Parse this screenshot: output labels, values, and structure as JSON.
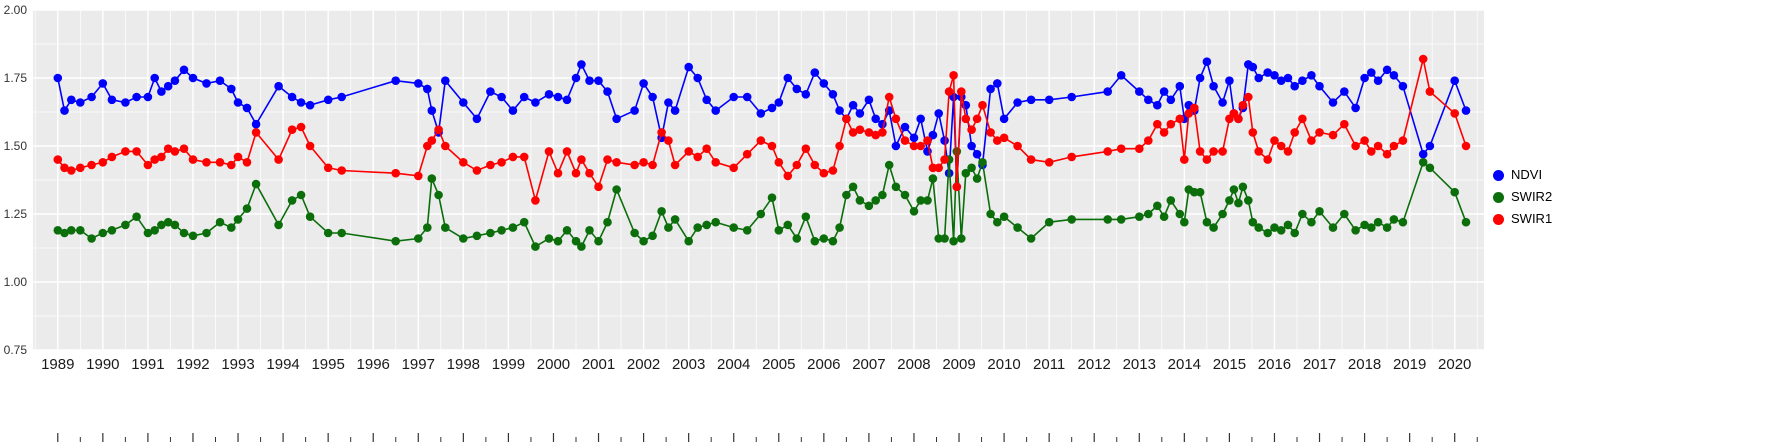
{
  "chart_data": {
    "type": "line",
    "title": "",
    "xlabel": "",
    "ylabel": "",
    "grid": true,
    "panel_background": "#ebebeb",
    "gridline_color": "#ffffff",
    "xlim": [
      1988.45,
      2020.65
    ],
    "ylim": [
      0.75,
      2.0
    ],
    "x_ticks": [
      "1989",
      "1990",
      "1991",
      "1992",
      "1993",
      "1994",
      "1995",
      "1996",
      "1997",
      "1998",
      "1999",
      "2000",
      "2001",
      "2002",
      "2003",
      "2004",
      "2005",
      "2006",
      "2007",
      "2008",
      "2009",
      "2010",
      "2011",
      "2012",
      "2013",
      "2014",
      "2015",
      "2016",
      "2017",
      "2018",
      "2019",
      "2020"
    ],
    "y_ticks": [
      "0.75",
      "1.00",
      "1.25",
      "1.50",
      "1.75",
      "2.00"
    ],
    "legend": {
      "position": "right",
      "entries": [
        {
          "label": "NDVI",
          "color": "#0000ff"
        },
        {
          "label": "SWIR2",
          "color": "#0b6e0b"
        },
        {
          "label": "SWIR1",
          "color": "#ff0000"
        }
      ]
    },
    "columns": [
      "year",
      "NDVI",
      "SWIR2",
      "SWIR1"
    ],
    "points": [
      [
        1989.0,
        1.75,
        1.19,
        1.45
      ],
      [
        1989.15,
        1.63,
        1.18,
        1.42
      ],
      [
        1989.3,
        1.67,
        1.19,
        1.41
      ],
      [
        1989.5,
        1.66,
        1.19,
        1.42
      ],
      [
        1989.75,
        1.68,
        1.16,
        1.43
      ],
      [
        1990.0,
        1.73,
        1.18,
        1.44
      ],
      [
        1990.2,
        1.67,
        1.19,
        1.46
      ],
      [
        1990.5,
        1.66,
        1.21,
        1.48
      ],
      [
        1990.75,
        1.68,
        1.24,
        1.48
      ],
      [
        1991.0,
        1.68,
        1.18,
        1.43
      ],
      [
        1991.15,
        1.75,
        1.19,
        1.45
      ],
      [
        1991.3,
        1.7,
        1.21,
        1.46
      ],
      [
        1991.45,
        1.72,
        1.22,
        1.49
      ],
      [
        1991.6,
        1.74,
        1.21,
        1.48
      ],
      [
        1991.8,
        1.78,
        1.18,
        1.49
      ],
      [
        1992.0,
        1.75,
        1.17,
        1.45
      ],
      [
        1992.3,
        1.73,
        1.18,
        1.44
      ],
      [
        1992.6,
        1.74,
        1.22,
        1.44
      ],
      [
        1992.85,
        1.71,
        1.2,
        1.43
      ],
      [
        1993.0,
        1.66,
        1.23,
        1.46
      ],
      [
        1993.2,
        1.64,
        1.27,
        1.44
      ],
      [
        1993.4,
        1.58,
        1.36,
        1.55
      ],
      [
        1993.9,
        1.72,
        1.21,
        1.45
      ],
      [
        1994.2,
        1.68,
        1.3,
        1.56
      ],
      [
        1994.4,
        1.66,
        1.32,
        1.57
      ],
      [
        1994.6,
        1.65,
        1.24,
        1.5
      ],
      [
        1995.0,
        1.67,
        1.18,
        1.42
      ],
      [
        1995.3,
        1.68,
        1.18,
        1.41
      ],
      [
        1996.5,
        1.74,
        1.15,
        1.4
      ],
      [
        1997.0,
        1.73,
        1.16,
        1.39
      ],
      [
        1997.2,
        1.71,
        1.2,
        1.5
      ],
      [
        1997.3,
        1.63,
        1.38,
        1.52
      ],
      [
        1997.45,
        1.55,
        1.32,
        1.56
      ],
      [
        1997.6,
        1.74,
        1.2,
        1.5
      ],
      [
        1998.0,
        1.66,
        1.16,
        1.44
      ],
      [
        1998.3,
        1.6,
        1.17,
        1.41
      ],
      [
        1998.6,
        1.7,
        1.18,
        1.43
      ],
      [
        1998.85,
        1.68,
        1.19,
        1.44
      ],
      [
        1999.1,
        1.63,
        1.2,
        1.46
      ],
      [
        1999.35,
        1.68,
        1.22,
        1.46
      ],
      [
        1999.6,
        1.66,
        1.13,
        1.3
      ],
      [
        1999.9,
        1.69,
        1.16,
        1.48
      ],
      [
        2000.1,
        1.68,
        1.15,
        1.4
      ],
      [
        2000.3,
        1.67,
        1.19,
        1.48
      ],
      [
        2000.5,
        1.75,
        1.15,
        1.4
      ],
      [
        2000.62,
        1.8,
        1.13,
        1.45
      ],
      [
        2000.8,
        1.74,
        1.19,
        1.4
      ],
      [
        2001.0,
        1.74,
        1.15,
        1.35
      ],
      [
        2001.2,
        1.7,
        1.22,
        1.45
      ],
      [
        2001.4,
        1.6,
        1.34,
        1.44
      ],
      [
        2001.8,
        1.63,
        1.18,
        1.43
      ],
      [
        2002.0,
        1.73,
        1.15,
        1.44
      ],
      [
        2002.2,
        1.68,
        1.17,
        1.43
      ],
      [
        2002.4,
        1.53,
        1.26,
        1.55
      ],
      [
        2002.55,
        1.66,
        1.2,
        1.52
      ],
      [
        2002.7,
        1.63,
        1.23,
        1.43
      ],
      [
        2003.0,
        1.79,
        1.15,
        1.48
      ],
      [
        2003.2,
        1.75,
        1.2,
        1.46
      ],
      [
        2003.4,
        1.67,
        1.21,
        1.49
      ],
      [
        2003.6,
        1.63,
        1.22,
        1.44
      ],
      [
        2004.0,
        1.68,
        1.2,
        1.42
      ],
      [
        2004.3,
        1.68,
        1.19,
        1.47
      ],
      [
        2004.6,
        1.62,
        1.25,
        1.52
      ],
      [
        2004.85,
        1.64,
        1.31,
        1.5
      ],
      [
        2005.0,
        1.66,
        1.19,
        1.44
      ],
      [
        2005.2,
        1.75,
        1.21,
        1.39
      ],
      [
        2005.4,
        1.71,
        1.16,
        1.43
      ],
      [
        2005.6,
        1.69,
        1.24,
        1.49
      ],
      [
        2005.8,
        1.77,
        1.15,
        1.43
      ],
      [
        2006.0,
        1.73,
        1.16,
        1.4
      ],
      [
        2006.2,
        1.69,
        1.15,
        1.41
      ],
      [
        2006.35,
        1.63,
        1.2,
        1.5
      ],
      [
        2006.5,
        1.6,
        1.32,
        1.6
      ],
      [
        2006.65,
        1.65,
        1.35,
        1.55
      ],
      [
        2006.8,
        1.62,
        1.3,
        1.56
      ],
      [
        2007.0,
        1.67,
        1.28,
        1.55
      ],
      [
        2007.15,
        1.6,
        1.3,
        1.54
      ],
      [
        2007.3,
        1.58,
        1.32,
        1.55
      ],
      [
        2007.45,
        1.63,
        1.43,
        1.68
      ],
      [
        2007.6,
        1.5,
        1.35,
        1.6
      ],
      [
        2007.8,
        1.57,
        1.32,
        1.52
      ],
      [
        2008.0,
        1.53,
        1.26,
        1.5
      ],
      [
        2008.15,
        1.6,
        1.3,
        1.5
      ],
      [
        2008.3,
        1.48,
        1.3,
        1.52
      ],
      [
        2008.42,
        1.54,
        1.38,
        1.42
      ],
      [
        2008.55,
        1.62,
        1.16,
        1.42
      ],
      [
        2008.68,
        1.52,
        1.16,
        1.45
      ],
      [
        2008.78,
        1.4,
        1.45,
        1.7
      ],
      [
        2008.88,
        1.68,
        1.15,
        1.76
      ],
      [
        2008.95,
        1.35,
        1.48,
        1.35
      ],
      [
        2009.05,
        1.68,
        1.16,
        1.7
      ],
      [
        2009.15,
        1.65,
        1.4,
        1.6
      ],
      [
        2009.28,
        1.5,
        1.42,
        1.56
      ],
      [
        2009.4,
        1.47,
        1.38,
        1.6
      ],
      [
        2009.52,
        1.43,
        1.44,
        1.65
      ],
      [
        2009.7,
        1.71,
        1.25,
        1.55
      ],
      [
        2009.85,
        1.73,
        1.22,
        1.52
      ],
      [
        2010.0,
        1.6,
        1.24,
        1.53
      ],
      [
        2010.3,
        1.66,
        1.2,
        1.5
      ],
      [
        2010.6,
        1.67,
        1.16,
        1.45
      ],
      [
        2011.0,
        1.67,
        1.22,
        1.44
      ],
      [
        2011.5,
        1.68,
        1.23,
        1.46
      ],
      [
        2012.3,
        1.7,
        1.23,
        1.48
      ],
      [
        2012.6,
        1.76,
        1.23,
        1.49
      ],
      [
        2013.0,
        1.7,
        1.24,
        1.49
      ],
      [
        2013.2,
        1.67,
        1.25,
        1.52
      ],
      [
        2013.4,
        1.65,
        1.28,
        1.58
      ],
      [
        2013.55,
        1.7,
        1.24,
        1.55
      ],
      [
        2013.7,
        1.67,
        1.3,
        1.58
      ],
      [
        2013.9,
        1.72,
        1.25,
        1.6
      ],
      [
        2014.0,
        1.6,
        1.22,
        1.45
      ],
      [
        2014.1,
        1.65,
        1.34,
        1.62
      ],
      [
        2014.22,
        1.63,
        1.33,
        1.64
      ],
      [
        2014.35,
        1.75,
        1.33,
        1.48
      ],
      [
        2014.5,
        1.81,
        1.22,
        1.45
      ],
      [
        2014.65,
        1.72,
        1.2,
        1.48
      ],
      [
        2014.85,
        1.66,
        1.25,
        1.48
      ],
      [
        2015.0,
        1.74,
        1.3,
        1.6
      ],
      [
        2015.1,
        1.62,
        1.34,
        1.62
      ],
      [
        2015.2,
        1.6,
        1.29,
        1.6
      ],
      [
        2015.3,
        1.64,
        1.35,
        1.65
      ],
      [
        2015.42,
        1.8,
        1.3,
        1.68
      ],
      [
        2015.52,
        1.79,
        1.22,
        1.55
      ],
      [
        2015.65,
        1.75,
        1.2,
        1.48
      ],
      [
        2015.85,
        1.77,
        1.18,
        1.45
      ],
      [
        2016.0,
        1.76,
        1.2,
        1.52
      ],
      [
        2016.15,
        1.74,
        1.19,
        1.5
      ],
      [
        2016.3,
        1.75,
        1.21,
        1.48
      ],
      [
        2016.45,
        1.72,
        1.18,
        1.55
      ],
      [
        2016.62,
        1.74,
        1.25,
        1.6
      ],
      [
        2016.82,
        1.76,
        1.22,
        1.52
      ],
      [
        2017.0,
        1.72,
        1.26,
        1.55
      ],
      [
        2017.3,
        1.66,
        1.2,
        1.54
      ],
      [
        2017.55,
        1.7,
        1.25,
        1.58
      ],
      [
        2017.8,
        1.64,
        1.19,
        1.5
      ],
      [
        2018.0,
        1.75,
        1.21,
        1.52
      ],
      [
        2018.15,
        1.77,
        1.2,
        1.48
      ],
      [
        2018.3,
        1.74,
        1.22,
        1.5
      ],
      [
        2018.5,
        1.78,
        1.2,
        1.47
      ],
      [
        2018.65,
        1.76,
        1.23,
        1.5
      ],
      [
        2018.85,
        1.72,
        1.22,
        1.52
      ],
      [
        2019.3,
        1.47,
        1.44,
        1.82
      ],
      [
        2019.45,
        1.5,
        1.42,
        1.7
      ],
      [
        2020.0,
        1.74,
        1.33,
        1.62
      ],
      [
        2020.25,
        1.63,
        1.22,
        1.5
      ]
    ]
  }
}
